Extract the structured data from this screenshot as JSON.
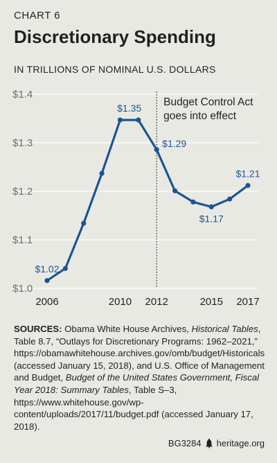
{
  "header": {
    "chart_number": "CHART 6",
    "title": "Discretionary Spending",
    "subtitle": "IN TRILLIONS OF NOMINAL U.S. DOLLARS"
  },
  "chart_data": {
    "type": "line",
    "title": "Discretionary Spending",
    "subtitle": "IN TRILLIONS OF NOMINAL U.S. DOLLARS",
    "x": [
      2006,
      2007,
      2008,
      2009,
      2010,
      2011,
      2012,
      2013,
      2014,
      2015,
      2016,
      2017
    ],
    "series": [
      {
        "values": [
          1.016,
          1.041,
          1.134,
          1.237,
          1.347,
          1.347,
          1.286,
          1.201,
          1.178,
          1.168,
          1.184,
          1.212
        ],
        "color": "#1b5592"
      }
    ],
    "xlim": [
      2006,
      2017
    ],
    "ylim": [
      1.0,
      1.4
    ],
    "x_ticks": [
      "2006",
      "2010",
      "2012",
      "2015",
      "2017"
    ],
    "x_tick_values": [
      2006,
      2010,
      2012,
      2015,
      2017
    ],
    "y_ticks": [
      "$1.0",
      "$1.1",
      "$1.2",
      "$1.3",
      "$1.4"
    ],
    "y_tick_values": [
      1.0,
      1.1,
      1.2,
      1.3,
      1.4
    ],
    "grid": "horizontal",
    "data_labels": [
      {
        "text": "$1.02",
        "x": 2006,
        "y": 1.016,
        "pos": "above"
      },
      {
        "text": "$1.35",
        "x": 2010.5,
        "y": 1.347,
        "pos": "above"
      },
      {
        "text": "$1.29",
        "x": 2012,
        "y": 1.286,
        "pos": "right"
      },
      {
        "text": "$1.17",
        "x": 2015,
        "y": 1.168,
        "pos": "below"
      },
      {
        "text": "$1.21",
        "x": 2017,
        "y": 1.212,
        "pos": "above"
      }
    ],
    "annotation": {
      "x": 2012,
      "line1": "Budget Control Act",
      "line2": "goes into effect",
      "style": "dotted-vertical-line"
    }
  },
  "sources": {
    "label": "SOURCES:",
    "part1": "Obama White House Archives, ",
    "italic1": "Historical Tables",
    "part2": ", Table 8.7, “Outlays for Discretionary Programs: 1962–2021,” https://obamawhitehouse.archives.gov/omb/budget/Historicals (accessed January 15, 2018), and U.S. Office of Management and Budget, ",
    "italic2": "Budget of the United States Government, Fiscal Year 2018: Summary Tables",
    "part3": ", Table S–3, https://www.whitehouse.gov/wp-content/uploads/2017/11/budget.pdf (accessed January 17, 2018)."
  },
  "footer": {
    "code": "BG3284",
    "site": "heritage.org",
    "icon": "liberty-bell-icon"
  },
  "colors": {
    "background": "#e9e9e4",
    "line": "#1b5592",
    "text": "#231f20",
    "grid": "#ffffff"
  }
}
